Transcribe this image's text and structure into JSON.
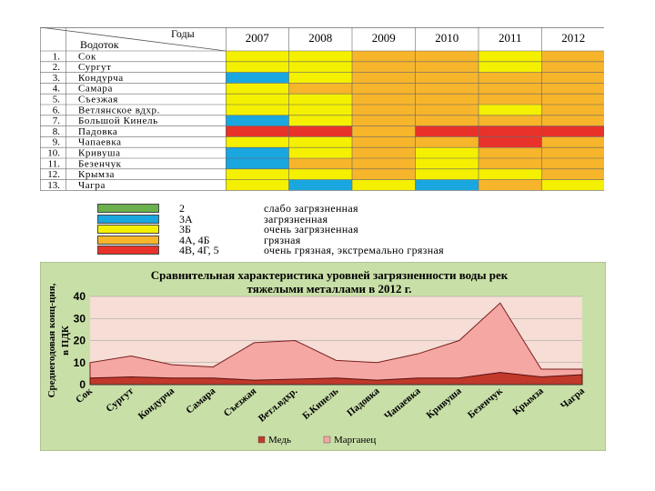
{
  "table": {
    "header_top": "Годы",
    "header_bottom": "Водоток",
    "years": [
      "2007",
      "2008",
      "2009",
      "2010",
      "2011",
      "2012"
    ],
    "rows": [
      {
        "num": "1.",
        "name": "Сок",
        "classes": [
          "4",
          "4",
          "5",
          "5",
          "4",
          "5"
        ]
      },
      {
        "num": "2.",
        "name": "Сургут",
        "classes": [
          "4",
          "4",
          "5",
          "5",
          "4",
          "5"
        ]
      },
      {
        "num": "3.",
        "name": "Кондурча",
        "classes": [
          "2",
          "4",
          "5",
          "5",
          "5",
          "5"
        ]
      },
      {
        "num": "4.",
        "name": "Самара",
        "classes": [
          "4",
          "5",
          "5",
          "5",
          "5",
          "5"
        ]
      },
      {
        "num": "5.",
        "name": "Съезжая",
        "classes": [
          "4",
          "4",
          "5",
          "5",
          "5",
          "5"
        ]
      },
      {
        "num": "6.",
        "name": "Ветлянское вдхр.",
        "classes": [
          "4",
          "4",
          "5",
          "5",
          "4",
          "5"
        ]
      },
      {
        "num": "7.",
        "name": "Большой Кинель",
        "classes": [
          "2",
          "4",
          "5",
          "5",
          "5",
          "5"
        ]
      },
      {
        "num": "8.",
        "name": "Падовка",
        "classes": [
          "6",
          "6",
          "5",
          "6",
          "6",
          "6"
        ]
      },
      {
        "num": "9.",
        "name": "Чапаевка",
        "classes": [
          "4",
          "4",
          "5",
          "5",
          "6",
          "5"
        ]
      },
      {
        "num": "10.",
        "name": "Кривуша",
        "classes": [
          "2",
          "4",
          "5",
          "4",
          "5",
          "5"
        ]
      },
      {
        "num": "11.",
        "name": "Безенчук",
        "classes": [
          "2",
          "5",
          "5",
          "4",
          "5",
          "5"
        ]
      },
      {
        "num": "12.",
        "name": "Крымза",
        "classes": [
          "4",
          "4",
          "5",
          "4",
          "4",
          "5"
        ]
      },
      {
        "num": "13.",
        "name": "Чагра",
        "classes": [
          "4",
          "2",
          "4",
          "2",
          "5",
          "4"
        ]
      }
    ]
  },
  "legend": [
    {
      "code": "2",
      "text": "слабо загрязненная",
      "color": "#6ab04c"
    },
    {
      "code": "3А",
      "text": "загрязненная",
      "color": "#1aa7e0"
    },
    {
      "code": "3Б",
      "text": "очень загрязненная",
      "color": "#f5f000"
    },
    {
      "code": "4А, 4Б",
      "text": "грязная",
      "color": "#f7b52b"
    },
    {
      "code": "4В, 4Г, 5",
      "text": "очень грязная, экстремально грязная",
      "color": "#e8322a"
    }
  ],
  "cell_colors": {
    "2": "#1aa7e0",
    "4": "#f5f000",
    "5": "#f7b52b",
    "6": "#e8322a"
  },
  "chart_data": {
    "type": "area",
    "title": "Сравнительная характеристика уровней загрязненности воды рек тяжелыми металлами в 2012 г.",
    "ylabel": "Среднегодовая конц-ция, в ПДК",
    "ylim": [
      0,
      40
    ],
    "yticks": [
      0,
      10,
      20,
      30,
      40
    ],
    "categories": [
      "Сок",
      "Сургут",
      "Кондурча",
      "Самара",
      "Съезжая",
      "Ветл.вдхр.",
      "Б.Кинель",
      "Падовка",
      "Чапаевка",
      "Кривуша",
      "Безенчук",
      "Крымза",
      "Чагра"
    ],
    "series": [
      {
        "name": "Медь",
        "color": "#c0392b",
        "values": [
          3,
          3.5,
          3,
          3,
          2,
          2.5,
          3,
          2,
          3,
          3,
          5.5,
          3.5,
          4.5
        ]
      },
      {
        "name": "Марганец",
        "color": "#f4a7a3",
        "values": [
          10,
          13,
          9,
          8,
          19,
          20,
          11,
          10,
          14,
          20,
          37,
          7,
          7
        ]
      }
    ],
    "grid": true,
    "legend_position": "bottom"
  }
}
